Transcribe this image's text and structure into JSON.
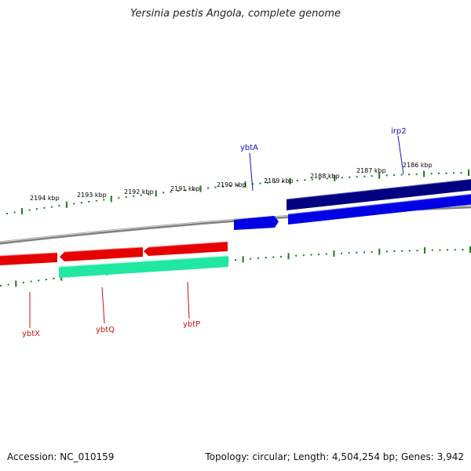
{
  "title": "Yersinia pestis Angola, complete genome",
  "footer": {
    "accession": "Accession: NC_010159",
    "summary": "Topology: circular; Length: 4,504,254 bp; Genes: 3,942"
  },
  "ticks": {
    "labels": [
      "2194 kbp",
      "2193 kbp",
      "2192 kbp",
      "2191 kbp",
      "2190 kbp",
      "2189 kbp",
      "2188 kbp",
      "2187 kbp",
      "2186 kbp"
    ]
  },
  "colors": {
    "backbone": "#808080",
    "tick": "#1a7a1a",
    "forward_dark": "#000080",
    "forward": "#0000e6",
    "reverse": "#e60000",
    "reverse_fill": "#20e8a0",
    "label_forward": "#1010cc",
    "label_reverse": "#cc1010"
  },
  "features": [
    {
      "name": "ybtA",
      "strand": "forward"
    },
    {
      "name": "irp2",
      "strand": "forward"
    },
    {
      "name": "ybtX",
      "strand": "reverse"
    },
    {
      "name": "ybtQ",
      "strand": "reverse"
    },
    {
      "name": "ybtP",
      "strand": "reverse"
    }
  ]
}
